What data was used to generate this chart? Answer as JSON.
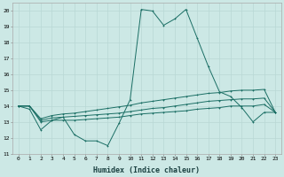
{
  "xlabel": "Humidex (Indice chaleur)",
  "bg_color": "#cce8e5",
  "grid_color": "#b8d8d5",
  "line_color": "#1a6e64",
  "xlim": [
    -0.5,
    23.5
  ],
  "ylim": [
    11,
    20.5
  ],
  "yticks": [
    11,
    12,
    13,
    14,
    15,
    16,
    17,
    18,
    19,
    20
  ],
  "xticks": [
    0,
    1,
    2,
    3,
    4,
    5,
    6,
    7,
    8,
    9,
    10,
    11,
    12,
    13,
    14,
    15,
    16,
    17,
    18,
    19,
    20,
    21,
    22,
    23
  ],
  "series": [
    [
      14.0,
      13.8,
      12.5,
      13.1,
      13.3,
      12.2,
      11.8,
      11.8,
      11.5,
      12.9,
      14.4,
      20.1,
      20.0,
      19.1,
      19.5,
      20.1,
      18.3,
      16.5,
      14.9,
      14.6,
      13.9,
      13.0,
      13.6,
      13.6
    ],
    [
      14.0,
      14.0,
      13.0,
      13.1,
      13.1,
      13.1,
      13.15,
      13.2,
      13.25,
      13.3,
      13.4,
      13.5,
      13.55,
      13.6,
      13.65,
      13.7,
      13.8,
      13.85,
      13.9,
      14.0,
      14.0,
      14.0,
      14.1,
      13.6
    ],
    [
      14.0,
      14.0,
      13.1,
      13.25,
      13.3,
      13.35,
      13.4,
      13.45,
      13.5,
      13.55,
      13.65,
      13.75,
      13.85,
      13.9,
      14.0,
      14.1,
      14.2,
      14.3,
      14.35,
      14.4,
      14.45,
      14.45,
      14.5,
      13.6
    ],
    [
      14.0,
      14.0,
      13.2,
      13.4,
      13.5,
      13.55,
      13.65,
      13.75,
      13.85,
      13.95,
      14.05,
      14.2,
      14.3,
      14.4,
      14.5,
      14.6,
      14.7,
      14.8,
      14.85,
      14.95,
      15.0,
      15.0,
      15.05,
      13.6
    ]
  ]
}
